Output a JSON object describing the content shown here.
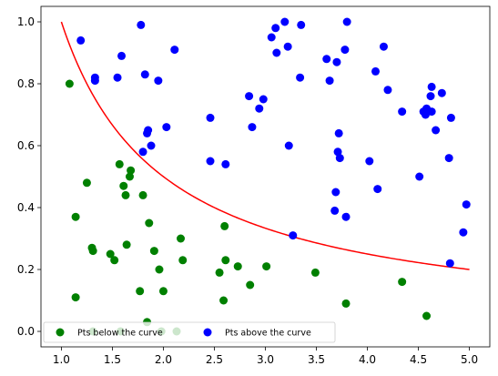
{
  "chart_data": {
    "type": "scatter",
    "title": "",
    "xlabel": "",
    "ylabel": "",
    "xlim": [
      0.8,
      5.2
    ],
    "ylim": [
      -0.05,
      1.05
    ],
    "x_ticks": [
      1.0,
      1.5,
      2.0,
      2.5,
      3.0,
      3.5,
      4.0,
      4.5,
      5.0
    ],
    "y_ticks": [
      0.0,
      0.2,
      0.4,
      0.6,
      0.8,
      1.0
    ],
    "x_tick_labels": [
      "1.0",
      "1.5",
      "2.0",
      "2.5",
      "3.0",
      "3.5",
      "4.0",
      "4.5",
      "5.0"
    ],
    "y_tick_labels": [
      "0.0",
      "0.2",
      "0.4",
      "0.6",
      "0.8",
      "1.0"
    ],
    "grid": false,
    "legend_position": "bottom-left",
    "curve": {
      "equation": "y = 1/x",
      "color": "#ff0000",
      "x_range": [
        1.0,
        5.0
      ]
    },
    "series": [
      {
        "name": "Pts below the curve",
        "color": "#008000",
        "points": [
          [
            1.08,
            0.8
          ],
          [
            1.14,
            0.37
          ],
          [
            1.14,
            0.11
          ],
          [
            1.25,
            0.48
          ],
          [
            1.3,
            0.27
          ],
          [
            1.31,
            0.26
          ],
          [
            1.31,
            0.0
          ],
          [
            1.48,
            0.25
          ],
          [
            1.52,
            0.23
          ],
          [
            1.57,
            0.54
          ],
          [
            1.58,
            0.0
          ],
          [
            1.61,
            0.47
          ],
          [
            1.63,
            0.44
          ],
          [
            1.64,
            0.28
          ],
          [
            1.67,
            0.5
          ],
          [
            1.68,
            0.52
          ],
          [
            1.77,
            0.13
          ],
          [
            1.8,
            0.44
          ],
          [
            1.84,
            0.03
          ],
          [
            1.86,
            0.35
          ],
          [
            1.91,
            0.26
          ],
          [
            1.96,
            0.2
          ],
          [
            1.98,
            0.0
          ],
          [
            2.0,
            0.13
          ],
          [
            2.13,
            0.0
          ],
          [
            2.17,
            0.3
          ],
          [
            2.19,
            0.23
          ],
          [
            2.55,
            0.19
          ],
          [
            2.59,
            0.1
          ],
          [
            2.6,
            0.34
          ],
          [
            2.61,
            0.23
          ],
          [
            2.73,
            0.21
          ],
          [
            2.85,
            0.15
          ],
          [
            3.01,
            0.21
          ],
          [
            3.49,
            0.19
          ],
          [
            3.79,
            0.09
          ],
          [
            4.34,
            0.16
          ],
          [
            4.58,
            0.05
          ]
        ]
      },
      {
        "name": "Pts above the curve",
        "color": "#0000ff",
        "points": [
          [
            1.19,
            0.94
          ],
          [
            1.33,
            0.82
          ],
          [
            1.33,
            0.81
          ],
          [
            1.55,
            0.82
          ],
          [
            1.59,
            0.89
          ],
          [
            1.78,
            0.99
          ],
          [
            1.8,
            0.58
          ],
          [
            1.82,
            0.83
          ],
          [
            1.84,
            0.64
          ],
          [
            1.85,
            0.65
          ],
          [
            1.88,
            0.6
          ],
          [
            1.95,
            0.81
          ],
          [
            2.03,
            0.66
          ],
          [
            2.11,
            0.91
          ],
          [
            2.46,
            0.69
          ],
          [
            2.46,
            0.55
          ],
          [
            2.61,
            0.54
          ],
          [
            2.84,
            0.76
          ],
          [
            2.87,
            0.66
          ],
          [
            2.94,
            0.72
          ],
          [
            2.98,
            0.75
          ],
          [
            3.06,
            0.95
          ],
          [
            3.1,
            0.98
          ],
          [
            3.11,
            0.9
          ],
          [
            3.19,
            1.0
          ],
          [
            3.22,
            0.92
          ],
          [
            3.23,
            0.6
          ],
          [
            3.27,
            0.31
          ],
          [
            3.34,
            0.82
          ],
          [
            3.35,
            0.99
          ],
          [
            3.6,
            0.88
          ],
          [
            3.63,
            0.81
          ],
          [
            3.68,
            0.39
          ],
          [
            3.69,
            0.45
          ],
          [
            3.7,
            0.87
          ],
          [
            3.71,
            0.58
          ],
          [
            3.72,
            0.64
          ],
          [
            3.73,
            0.56
          ],
          [
            3.78,
            0.91
          ],
          [
            3.79,
            0.37
          ],
          [
            3.8,
            1.0
          ],
          [
            4.02,
            0.55
          ],
          [
            4.08,
            0.84
          ],
          [
            4.1,
            0.46
          ],
          [
            4.16,
            0.92
          ],
          [
            4.2,
            0.78
          ],
          [
            4.34,
            0.71
          ],
          [
            4.51,
            0.5
          ],
          [
            4.55,
            0.71
          ],
          [
            4.57,
            0.7
          ],
          [
            4.58,
            0.72
          ],
          [
            4.62,
            0.76
          ],
          [
            4.63,
            0.79
          ],
          [
            4.63,
            0.71
          ],
          [
            4.67,
            0.65
          ],
          [
            4.73,
            0.77
          ],
          [
            4.8,
            0.56
          ],
          [
            4.81,
            0.22
          ],
          [
            4.82,
            0.69
          ],
          [
            4.94,
            0.32
          ],
          [
            4.97,
            0.41
          ]
        ]
      }
    ]
  }
}
